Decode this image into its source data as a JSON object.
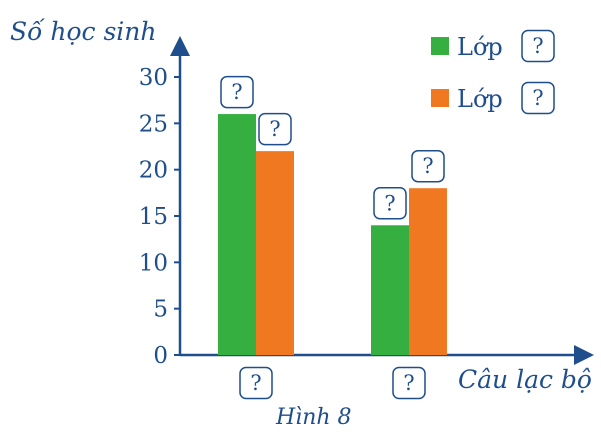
{
  "chart_data": {
    "type": "bar",
    "ylabel": "Số học sinh",
    "xlabel": "Câu lạc bộ",
    "caption": "Hình 8",
    "ylim": [
      0,
      30
    ],
    "yticks": [
      "0",
      "5",
      "10",
      "15",
      "20",
      "25",
      "30"
    ],
    "categories": [
      "?",
      "?"
    ],
    "series": [
      {
        "name": "Lớp",
        "legend_placeholder": "?",
        "color": "#35b040",
        "values": [
          26,
          14
        ],
        "data_labels": [
          "?",
          "?"
        ]
      },
      {
        "name": "Lớp",
        "legend_placeholder": "?",
        "color": "#f07820",
        "values": [
          22,
          18
        ],
        "data_labels": [
          "?",
          "?"
        ]
      }
    ],
    "legend_position": "top-right",
    "grid": false
  }
}
